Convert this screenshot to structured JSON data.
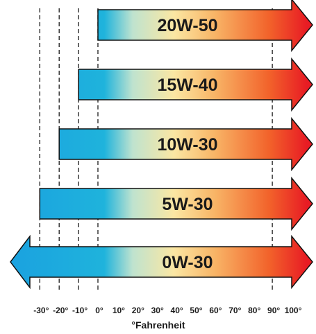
{
  "chart_data": {
    "type": "range-bar",
    "title": "",
    "xlabel": "°Fahrenheit",
    "ylabel": "",
    "xlim": [
      -35,
      105
    ],
    "unit_symbol": "°",
    "ticks": [
      -30,
      -20,
      -10,
      0,
      10,
      20,
      30,
      40,
      50,
      60,
      70,
      80,
      90,
      100
    ],
    "dashed_reference_lines": [
      -30,
      -20,
      -10,
      0,
      90
    ],
    "arrow_points": "right, with 0W-30 also pointing left",
    "gradient_colors": [
      "#1aa0e0",
      "#1fb3dc",
      "#bfe3cf",
      "#fbe7a3",
      "#f8b466",
      "#f2632b",
      "#e81c24"
    ],
    "series": [
      {
        "name": "20W-50",
        "min": 0,
        "max": 100,
        "open_min": false,
        "open_max": true
      },
      {
        "name": "15W-40",
        "min": -10,
        "max": 100,
        "open_min": false,
        "open_max": true
      },
      {
        "name": "10W-30",
        "min": -20,
        "max": 100,
        "open_min": false,
        "open_max": true
      },
      {
        "name": "5W-30",
        "min": -30,
        "max": 100,
        "open_min": false,
        "open_max": true
      },
      {
        "name": "0W-30",
        "min": -30,
        "max": 100,
        "open_min": true,
        "open_max": true
      }
    ]
  }
}
